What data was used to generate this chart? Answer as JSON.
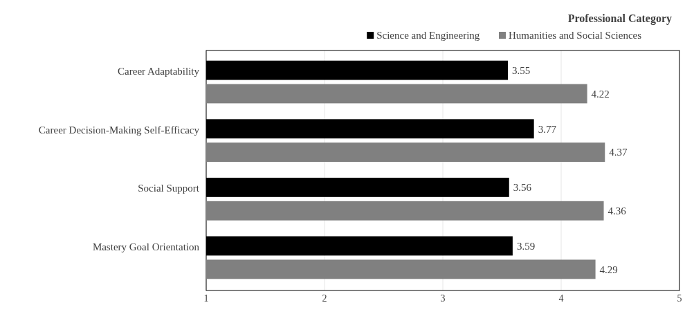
{
  "chart_data": {
    "type": "bar",
    "orientation": "horizontal",
    "legend_title": "Professional Category",
    "legend": "top right",
    "categories": [
      "Career Adaptability",
      "Career Decision-Making Self-Efficacy",
      "Social Support",
      "Mastery Goal Orientation"
    ],
    "series": [
      {
        "name": "Science and Engineering",
        "color": "#000000",
        "values": [
          3.55,
          3.77,
          3.56,
          3.59
        ]
      },
      {
        "name": "Humanities and Social Sciences",
        "color": "#808080",
        "values": [
          4.22,
          4.37,
          4.36,
          4.29
        ]
      }
    ],
    "xlim": [
      1,
      5
    ],
    "xticks": [
      1,
      2,
      3,
      4,
      5
    ],
    "grid": "x",
    "data_labels": true
  }
}
